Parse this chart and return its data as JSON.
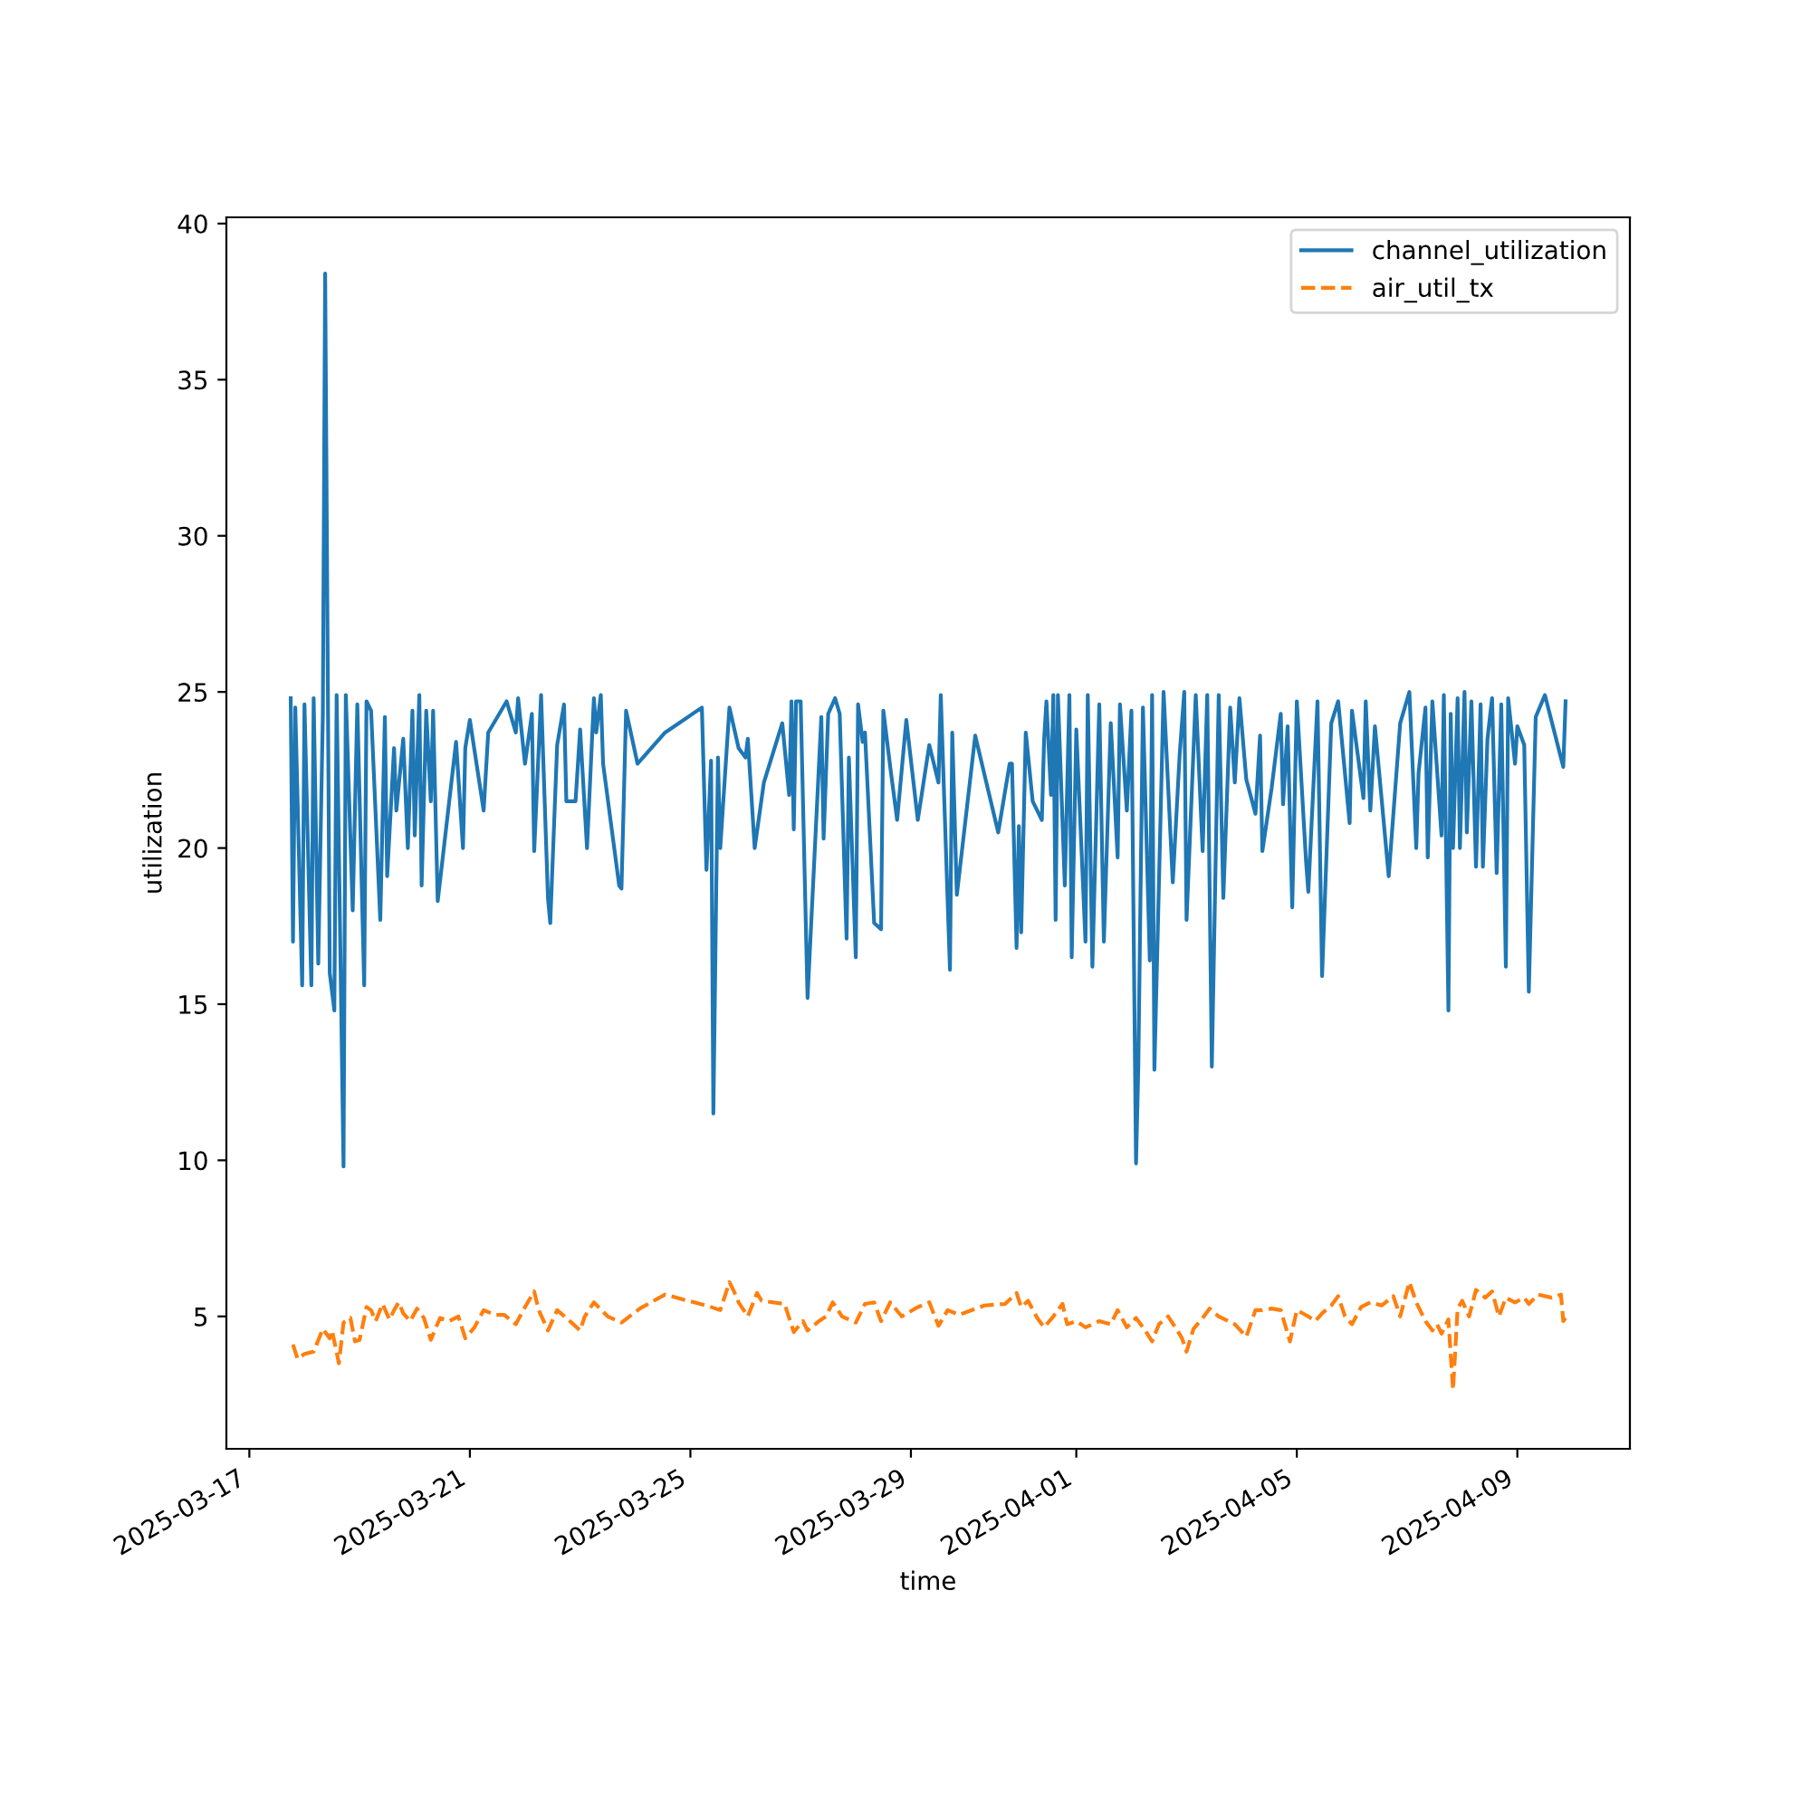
{
  "chart_data": {
    "type": "line",
    "xlabel": "time",
    "ylabel": "utilization",
    "xlim": [
      "2025-03-16T14:00",
      "2025-04-11T01:00"
    ],
    "ylim": [
      0.76,
      40.2
    ],
    "xticks": [
      "2025-03-17",
      "2025-03-21",
      "2025-03-25",
      "2025-03-29",
      "2025-04-01",
      "2025-04-05",
      "2025-04-09"
    ],
    "yticks": [
      5,
      10,
      15,
      20,
      25,
      30,
      35,
      40
    ],
    "grid": false,
    "legend": "top right",
    "series": [
      {
        "name": "channel_utilization",
        "color": "#1f77b4",
        "line_style": "solid",
        "x": [
          "2025-03-17T18:00",
          "2025-03-17T19:00",
          "2025-03-17T20:00",
          "2025-03-17T23:00",
          "2025-03-18T00:00",
          "2025-03-18T03:00",
          "2025-03-18T04:00",
          "2025-03-18T06:00",
          "2025-03-18T08:00",
          "2025-03-18T09:00",
          "2025-03-18T11:00",
          "2025-03-18T13:00",
          "2025-03-18T14:00",
          "2025-03-18T17:00",
          "2025-03-18T18:00",
          "2025-03-18T21:00",
          "2025-03-18T23:00",
          "2025-03-19T02:00",
          "2025-03-19T03:00",
          "2025-03-19T05:00",
          "2025-03-19T09:00",
          "2025-03-19T11:00",
          "2025-03-19T12:00",
          "2025-03-19T15:00",
          "2025-03-19T16:00",
          "2025-03-19T19:00",
          "2025-03-19T21:00",
          "2025-03-19T23:00",
          "2025-03-20T00:00",
          "2025-03-20T02:00",
          "2025-03-20T03:00",
          "2025-03-20T05:00",
          "2025-03-20T07:00",
          "2025-03-20T08:00",
          "2025-03-20T10:00",
          "2025-03-20T18:00",
          "2025-03-20T21:00",
          "2025-03-20T22:00",
          "2025-03-21T00:00",
          "2025-03-21T06:00",
          "2025-03-21T08:00",
          "2025-03-21T16:00",
          "2025-03-21T20:00",
          "2025-03-21T21:00",
          "2025-03-22T00:00",
          "2025-03-22T03:00",
          "2025-03-22T04:00",
          "2025-03-22T07:00",
          "2025-03-22T10:00",
          "2025-03-22T11:00",
          "2025-03-22T14:00",
          "2025-03-22T17:00",
          "2025-03-22T18:00",
          "2025-03-22T22:00",
          "2025-03-23T00:00",
          "2025-03-23T03:00",
          "2025-03-23T06:00",
          "2025-03-23T07:00",
          "2025-03-23T09:00",
          "2025-03-23T10:00",
          "2025-03-23T17:00",
          "2025-03-23T18:00",
          "2025-03-23T20:00",
          "2025-03-24T01:00",
          "2025-03-24T13:00",
          "2025-03-25T05:00",
          "2025-03-25T07:00",
          "2025-03-25T09:00",
          "2025-03-25T10:00",
          "2025-03-25T12:00",
          "2025-03-25T13:00",
          "2025-03-25T17:00",
          "2025-03-25T21:00",
          "2025-03-26T00:00",
          "2025-03-26T01:00",
          "2025-03-26T04:00",
          "2025-03-26T08:00",
          "2025-03-26T16:00",
          "2025-03-26T19:00",
          "2025-03-26T20:00",
          "2025-03-26T21:00",
          "2025-03-26T22:00",
          "2025-03-27T00:00",
          "2025-03-27T03:00",
          "2025-03-27T09:00",
          "2025-03-27T10:00",
          "2025-03-27T12:00",
          "2025-03-27T15:00",
          "2025-03-27T17:00",
          "2025-03-27T20:00",
          "2025-03-27T21:00",
          "2025-03-28T00:00",
          "2025-03-28T01:00",
          "2025-03-28T03:00",
          "2025-03-28T04:00",
          "2025-03-28T08:00",
          "2025-03-28T11:00",
          "2025-03-28T12:00",
          "2025-03-28T15:00",
          "2025-03-28T18:00",
          "2025-03-28T22:00",
          "2025-03-29T03:00",
          "2025-03-29T08:00",
          "2025-03-29T12:00",
          "2025-03-29T13:00",
          "2025-03-29T17:00",
          "2025-03-29T18:00",
          "2025-03-29T20:00",
          "2025-03-30T04:00",
          "2025-03-30T14:00",
          "2025-03-30T19:00",
          "2025-03-30T20:00",
          "2025-03-30T22:00",
          "2025-03-30T23:00",
          "2025-03-31T00:00",
          "2025-03-31T02:00",
          "2025-03-31T05:00",
          "2025-03-31T09:00",
          "2025-03-31T10:00",
          "2025-03-31T11:00",
          "2025-03-31T13:00",
          "2025-03-31T14:00",
          "2025-03-31T15:00",
          "2025-03-31T16:00",
          "2025-03-31T19:00",
          "2025-03-31T21:00",
          "2025-03-31T22:00",
          "2025-04-01T00:00",
          "2025-04-01T04:00",
          "2025-04-01T05:00",
          "2025-04-01T07:00",
          "2025-04-01T10:00",
          "2025-04-01T12:00",
          "2025-04-01T15:00",
          "2025-04-01T18:00",
          "2025-04-01T19:00",
          "2025-04-01T22:00",
          "2025-04-02T00:00",
          "2025-04-02T02:00",
          "2025-04-02T03:00",
          "2025-04-02T05:00",
          "2025-04-02T08:00",
          "2025-04-02T09:00",
          "2025-04-02T10:00",
          "2025-04-02T14:00",
          "2025-04-02T18:00",
          "2025-04-02T21:00",
          "2025-04-02T23:00",
          "2025-04-03T00:00",
          "2025-04-03T04:00",
          "2025-04-03T07:00",
          "2025-04-03T09:00",
          "2025-04-03T11:00",
          "2025-04-03T14:00",
          "2025-04-03T16:00",
          "2025-04-03T19:00",
          "2025-04-03T21:00",
          "2025-04-03T23:00",
          "2025-04-04T02:00",
          "2025-04-04T06:00",
          "2025-04-04T08:00",
          "2025-04-04T09:00",
          "2025-04-04T13:00",
          "2025-04-04T17:00",
          "2025-04-04T18:00",
          "2025-04-04T20:00",
          "2025-04-04T22:00",
          "2025-04-05T00:00",
          "2025-04-05T04:00",
          "2025-04-05T05:00",
          "2025-04-05T09:00",
          "2025-04-05T11:00",
          "2025-04-05T15:00",
          "2025-04-05T18:00",
          "2025-04-05T23:00",
          "2025-04-06T00:00",
          "2025-04-06T05:00",
          "2025-04-06T06:00",
          "2025-04-06T08:00",
          "2025-04-06T10:00",
          "2025-04-06T16:00",
          "2025-04-06T21:00",
          "2025-04-07T01:00",
          "2025-04-07T04:00",
          "2025-04-07T05:00",
          "2025-04-07T08:00",
          "2025-04-07T09:00",
          "2025-04-07T11:00",
          "2025-04-07T15:00",
          "2025-04-07T16:00",
          "2025-04-07T18:00",
          "2025-04-07T19:00",
          "2025-04-07T20:00",
          "2025-04-07T22:00",
          "2025-04-07T23:00",
          "2025-04-08T01:00",
          "2025-04-08T02:00",
          "2025-04-08T04:00",
          "2025-04-08T06:00",
          "2025-04-08T08:00",
          "2025-04-08T09:00",
          "2025-04-08T11:00",
          "2025-04-08T13:00",
          "2025-04-08T15:00",
          "2025-04-08T17:00",
          "2025-04-08T19:00",
          "2025-04-08T20:00",
          "2025-04-08T23:00",
          "2025-04-09T00:00",
          "2025-04-09T03:00",
          "2025-04-09T05:00",
          "2025-04-09T08:00",
          "2025-04-09T12:00",
          "2025-04-09T20:00",
          "2025-04-09T21:00"
        ],
        "values": [
          24.8,
          17.0,
          24.5,
          15.6,
          24.6,
          15.6,
          24.8,
          16.3,
          24.3,
          38.4,
          16.0,
          14.8,
          24.9,
          9.8,
          24.9,
          18.0,
          24.6,
          15.6,
          24.7,
          24.4,
          17.7,
          24.2,
          19.1,
          23.2,
          21.2,
          23.5,
          20.0,
          24.4,
          20.4,
          24.9,
          18.8,
          24.4,
          21.5,
          24.4,
          18.3,
          23.4,
          20.0,
          23.2,
          24.1,
          21.2,
          23.7,
          24.7,
          23.7,
          24.8,
          22.7,
          24.3,
          19.9,
          24.9,
          18.4,
          17.6,
          23.3,
          24.6,
          21.5,
          21.5,
          23.8,
          20.0,
          24.8,
          23.7,
          24.9,
          22.7,
          18.8,
          18.7,
          24.4,
          22.7,
          23.7,
          24.5,
          19.3,
          22.8,
          11.5,
          22.9,
          20.0,
          24.5,
          23.2,
          22.9,
          23.5,
          20.0,
          22.1,
          24.0,
          21.7,
          24.7,
          20.6,
          24.7,
          24.7,
          15.2,
          24.2,
          20.3,
          24.3,
          24.8,
          24.3,
          17.1,
          22.9,
          16.5,
          24.6,
          23.4,
          23.7,
          17.6,
          17.4,
          24.4,
          22.6,
          20.9,
          24.1,
          20.9,
          23.3,
          22.1,
          24.9,
          16.1,
          23.7,
          18.5,
          23.6,
          20.5,
          22.7,
          22.7,
          16.8,
          20.7,
          17.3,
          23.7,
          21.5,
          20.9,
          23.5,
          24.7,
          21.7,
          24.9,
          17.7,
          24.9,
          18.8,
          24.9,
          16.5,
          23.8,
          17.0,
          24.9,
          16.2,
          24.6,
          17.0,
          24.0,
          19.7,
          24.6,
          21.2,
          24.4,
          9.9,
          13.0,
          24.5,
          16.4,
          24.9,
          12.9,
          25.0,
          18.9,
          23.0,
          25.0,
          17.7,
          24.9,
          19.9,
          24.9,
          13.0,
          24.9,
          18.4,
          24.5,
          22.1,
          24.8,
          22.2,
          21.1,
          23.6,
          19.9,
          21.9,
          24.3,
          21.4,
          23.9,
          18.1,
          24.7,
          19.6,
          18.6,
          24.7,
          15.9,
          24.0,
          24.7,
          20.8,
          24.4,
          21.6,
          24.7,
          21.2,
          23.9,
          19.1,
          24.0,
          25.0,
          20.0,
          22.4,
          24.5,
          19.7,
          24.7,
          20.4,
          24.9,
          14.8,
          24.3,
          20.0,
          24.8,
          20.0,
          25.0,
          20.5,
          24.7,
          19.4,
          24.6,
          19.4,
          23.5,
          24.8,
          19.2,
          24.6,
          16.2,
          24.8,
          22.7,
          23.9,
          23.3,
          15.4,
          24.2,
          24.9,
          22.6,
          24.7
        ]
      },
      {
        "name": "air_util_tx",
        "color": "#ff7f0e",
        "line_style": "dashed",
        "x": [
          "2025-03-17T19:00",
          "2025-03-17T21:00",
          "2025-03-18T00:00",
          "2025-03-18T04:00",
          "2025-03-18T08:00",
          "2025-03-18T11:00",
          "2025-03-18T12:00",
          "2025-03-18T15:00",
          "2025-03-18T17:00",
          "2025-03-18T20:00",
          "2025-03-18T22:00",
          "2025-03-19T00:00",
          "2025-03-19T03:00",
          "2025-03-19T05:00",
          "2025-03-19T07:00",
          "2025-03-19T10:00",
          "2025-03-19T13:00",
          "2025-03-19T15:00",
          "2025-03-19T17:00",
          "2025-03-19T19:00",
          "2025-03-19T22:00",
          "2025-03-20T01:00",
          "2025-03-20T04:00",
          "2025-03-20T07:00",
          "2025-03-20T11:00",
          "2025-03-20T15:00",
          "2025-03-20T19:00",
          "2025-03-20T22:00",
          "2025-03-21T02:00",
          "2025-03-21T06:00",
          "2025-03-21T11:00",
          "2025-03-21T15:00",
          "2025-03-21T20:00",
          "2025-03-22T00:00",
          "2025-03-22T04:00",
          "2025-03-22T06:00",
          "2025-03-22T10:00",
          "2025-03-22T14:00",
          "2025-03-22T18:00",
          "2025-03-23T00:00",
          "2025-03-23T02:00",
          "2025-03-23T06:00",
          "2025-03-23T12:00",
          "2025-03-23T18:00",
          "2025-03-24T02:00",
          "2025-03-24T13:00",
          "2025-03-24T23:00",
          "2025-03-25T07:00",
          "2025-03-25T13:00",
          "2025-03-25T17:00",
          "2025-03-25T19:00",
          "2025-03-25T21:00",
          "2025-03-26T01:00",
          "2025-03-26T05:00",
          "2025-03-26T07:00",
          "2025-03-26T17:00",
          "2025-03-26T21:00",
          "2025-03-27T01:00",
          "2025-03-27T03:00",
          "2025-03-27T08:00",
          "2025-03-27T11:00",
          "2025-03-27T14:00",
          "2025-03-27T18:00",
          "2025-03-28T00:00",
          "2025-03-28T04:00",
          "2025-03-28T08:00",
          "2025-03-28T11:00",
          "2025-03-28T15:00",
          "2025-03-28T20:00",
          "2025-03-29T03:00",
          "2025-03-29T08:00",
          "2025-03-29T12:00",
          "2025-03-29T16:00",
          "2025-03-29T21:00",
          "2025-03-30T08:00",
          "2025-03-30T17:00",
          "2025-03-30T22:00",
          "2025-03-31T00:00",
          "2025-03-31T03:00",
          "2025-03-31T07:00",
          "2025-03-31T10:00",
          "2025-03-31T14:00",
          "2025-03-31T18:00",
          "2025-03-31T20:00",
          "2025-04-01T00:00",
          "2025-04-01T04:00",
          "2025-04-01T10:00",
          "2025-04-01T15:00",
          "2025-04-01T18:00",
          "2025-04-01T22:00",
          "2025-04-02T02:00",
          "2025-04-02T06:00",
          "2025-04-02T09:00",
          "2025-04-02T12:00",
          "2025-04-02T16:00",
          "2025-04-02T20:00",
          "2025-04-02T22:00",
          "2025-04-03T00:00",
          "2025-04-03T03:00",
          "2025-04-03T07:00",
          "2025-04-03T10:00",
          "2025-04-03T14:00",
          "2025-04-03T21:00",
          "2025-04-04T02:00",
          "2025-04-04T06:00",
          "2025-04-04T09:00",
          "2025-04-04T13:00",
          "2025-04-04T17:00",
          "2025-04-04T21:00",
          "2025-04-05T00:00",
          "2025-04-05T05:00",
          "2025-04-05T08:00",
          "2025-04-05T11:00",
          "2025-04-05T15:00",
          "2025-04-05T18:00",
          "2025-04-05T21:00",
          "2025-04-06T00:00",
          "2025-04-06T04:00",
          "2025-04-06T08:00",
          "2025-04-06T13:00",
          "2025-04-06T18:00",
          "2025-04-06T21:00",
          "2025-04-07T01:00",
          "2025-04-07T04:00",
          "2025-04-07T08:00",
          "2025-04-07T11:00",
          "2025-04-07T13:00",
          "2025-04-07T15:00",
          "2025-04-07T18:00",
          "2025-04-07T20:00",
          "2025-04-07T22:00",
          "2025-04-08T00:00",
          "2025-04-08T03:00",
          "2025-04-08T06:00",
          "2025-04-08T10:00",
          "2025-04-08T13:00",
          "2025-04-08T16:00",
          "2025-04-08T19:00",
          "2025-04-08T23:00",
          "2025-04-09T03:00",
          "2025-04-09T05:00",
          "2025-04-09T09:00",
          "2025-04-09T15:00",
          "2025-04-09T19:00",
          "2025-04-09T20:00",
          "2025-04-09T21:00"
        ],
        "values": [
          4.1,
          3.64,
          3.8,
          3.87,
          4.6,
          4.3,
          4.55,
          3.5,
          4.8,
          4.95,
          4.2,
          4.25,
          5.3,
          5.2,
          4.85,
          5.4,
          4.9,
          5.2,
          5.45,
          5.1,
          4.85,
          5.25,
          4.95,
          4.25,
          4.95,
          4.85,
          5.0,
          4.3,
          4.65,
          5.2,
          5.05,
          5.05,
          4.75,
          5.3,
          5.8,
          5.2,
          4.55,
          5.2,
          4.95,
          4.55,
          5.0,
          5.45,
          5.0,
          4.8,
          5.25,
          5.7,
          5.5,
          5.35,
          5.2,
          6.1,
          5.8,
          5.45,
          5.0,
          5.75,
          5.5,
          5.4,
          4.5,
          4.85,
          4.55,
          4.85,
          5.0,
          5.45,
          5.0,
          4.8,
          5.4,
          5.45,
          4.85,
          5.45,
          5.0,
          5.3,
          5.45,
          4.7,
          5.2,
          5.05,
          5.35,
          5.4,
          5.75,
          5.3,
          5.5,
          4.95,
          4.65,
          5.0,
          5.4,
          4.75,
          4.85,
          4.65,
          4.85,
          4.75,
          5.2,
          4.65,
          4.95,
          4.55,
          4.2,
          4.75,
          5.0,
          4.55,
          4.3,
          3.87,
          4.6,
          4.95,
          5.25,
          5.0,
          4.75,
          4.35,
          5.2,
          5.2,
          5.25,
          5.2,
          4.2,
          5.2,
          5.0,
          4.85,
          5.1,
          5.35,
          5.65,
          5.0,
          4.75,
          5.3,
          5.45,
          5.35,
          5.65,
          5.0,
          6.1,
          5.45,
          4.85,
          4.55,
          4.75,
          4.45,
          4.9,
          2.65,
          5.25,
          5.5,
          5.0,
          5.85,
          5.6,
          5.8,
          5.0,
          5.6,
          5.45,
          5.6,
          5.4,
          5.7,
          5.6,
          5.7,
          4.85,
          4.95
        ]
      }
    ]
  }
}
